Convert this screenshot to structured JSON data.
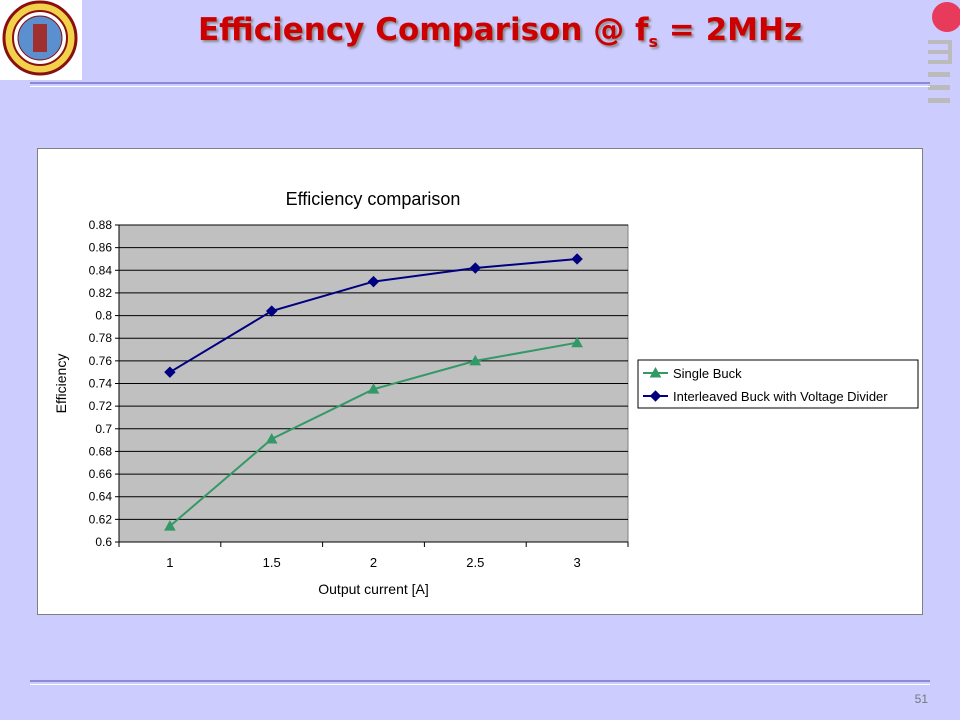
{
  "slide": {
    "title_main": "Efficiency Comparison @ f",
    "title_sub": "s",
    "title_tail": " = 2MHz",
    "page_number": "51",
    "title_color": "#cc0000",
    "background": "#ccccff"
  },
  "logos": {
    "left": "university-seal",
    "right": "university-mark-icon"
  },
  "chart_data": {
    "type": "line",
    "title": "Efficiency comparison",
    "xlabel": "Output current [A]",
    "ylabel": "Efficiency",
    "categories": [
      "1",
      "1.5",
      "2",
      "2.5",
      "3"
    ],
    "x": [
      1,
      1.5,
      2,
      2.5,
      3
    ],
    "ylim": [
      0.6,
      0.88
    ],
    "yticks": [
      0.6,
      0.62,
      0.64,
      0.66,
      0.68,
      0.7,
      0.72,
      0.74,
      0.76,
      0.78,
      0.8,
      0.82,
      0.84,
      0.86,
      0.88
    ],
    "ytick_labels": [
      "0.6",
      "0.62",
      "0.64",
      "0.66",
      "0.68",
      "0.7",
      "0.72",
      "0.74",
      "0.76",
      "0.78",
      "0.8",
      "0.82",
      "0.84",
      "0.86",
      "0.88"
    ],
    "grid": true,
    "legend_position": "right",
    "series": [
      {
        "name": "Single Buck",
        "values": [
          0.614,
          0.691,
          0.735,
          0.76,
          0.776
        ],
        "color": "#339966",
        "marker": "triangle"
      },
      {
        "name": "Interleaved Buck with Voltage Divider",
        "values": [
          0.75,
          0.804,
          0.83,
          0.842,
          0.85
        ],
        "color": "#000080",
        "marker": "diamond"
      }
    ]
  }
}
